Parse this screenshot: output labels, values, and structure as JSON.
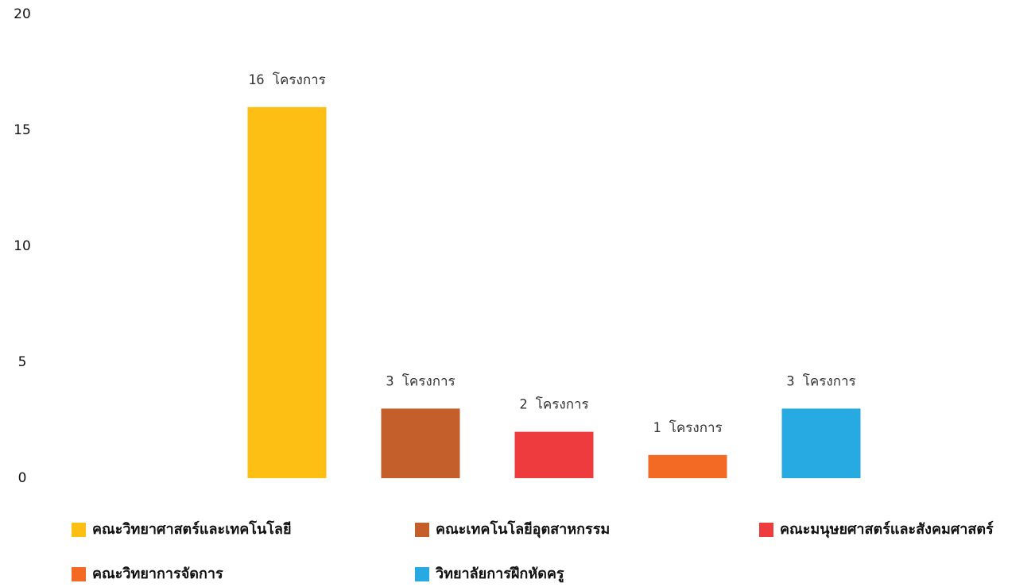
{
  "chart_data": {
    "type": "bar",
    "categories": [
      null
    ],
    "series": [
      {
        "name": "คณะวิทยาศาสตร์และเทคโนโลยี",
        "color": "#fdbf13",
        "values": [
          16
        ],
        "value_labels": [
          "16 โครงการ"
        ]
      },
      {
        "name": "คณะเทคโนโลยีอุตสาหกรรม",
        "color": "#c45e2a",
        "values": [
          3
        ],
        "value_labels": [
          "3 โครงการ"
        ]
      },
      {
        "name": "คณะมนุษยศาสตร์และสังคมศาสตร์",
        "color": "#ee3b3e",
        "values": [
          2
        ],
        "value_labels": [
          "2 โครงการ"
        ]
      },
      {
        "name": "คณะวิทยาการจัดการ",
        "color": "#f26a24",
        "values": [
          1
        ],
        "value_labels": [
          "1 โครงการ"
        ]
      },
      {
        "name": "วิทยาลัยการฝึกหัดครู",
        "color": "#27aae1",
        "values": [
          3
        ],
        "value_labels": [
          "3 โครงการ"
        ]
      }
    ],
    "ylim": [
      0,
      20
    ],
    "yticks": [
      0,
      5,
      10,
      15,
      20
    ],
    "grid": false,
    "legend": "bottom"
  }
}
